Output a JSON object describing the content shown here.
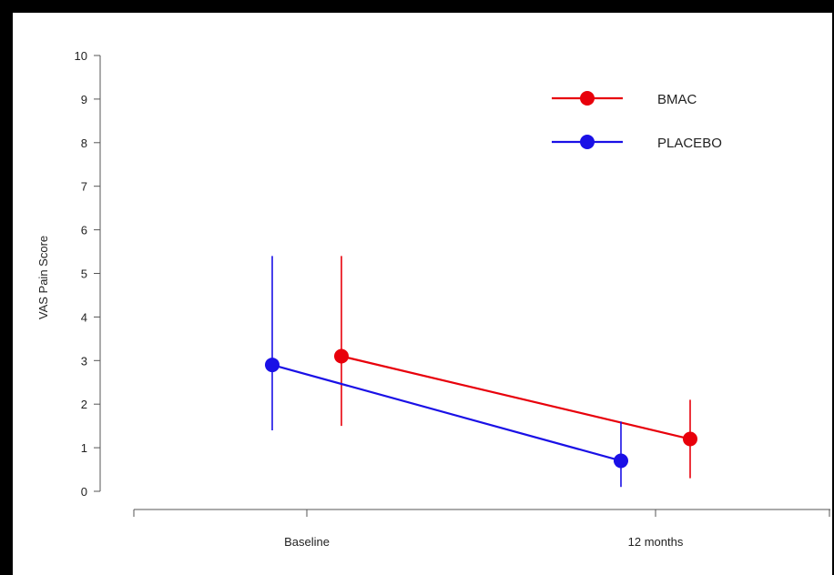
{
  "chart_data": {
    "type": "line",
    "title": "",
    "xlabel": "",
    "ylabel": "VAS Pain Score",
    "categories": [
      "Baseline",
      "12 months"
    ],
    "ylim": [
      0,
      10
    ],
    "yticks": [
      "0",
      "1",
      "2",
      "3",
      "4",
      "5",
      "6",
      "7",
      "8",
      "9",
      "10"
    ],
    "grid": false,
    "legend_position": "top-right",
    "series": [
      {
        "name": "BMAC",
        "color": "#e8000b",
        "values": [
          3.1,
          1.2
        ],
        "error_low": [
          1.5,
          0.3
        ],
        "error_high": [
          5.4,
          2.1
        ]
      },
      {
        "name": "PLACEBO",
        "color": "#1a10e6",
        "values": [
          2.9,
          0.7
        ],
        "error_low": [
          1.4,
          0.1
        ],
        "error_high": [
          5.4,
          1.6
        ]
      }
    ]
  }
}
